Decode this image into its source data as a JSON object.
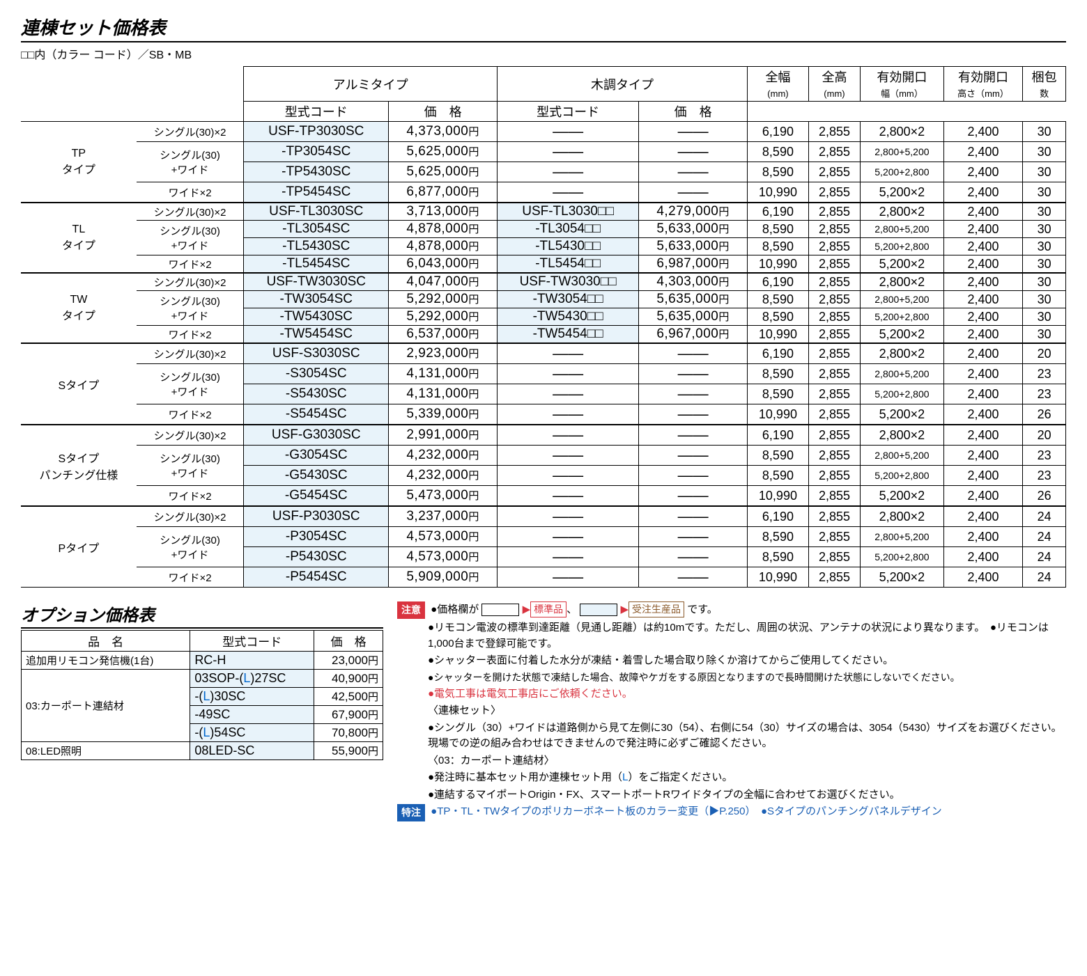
{
  "title": "連棟セット価格表",
  "subtitle": "□□内（カラー コード）／SB・MB",
  "headers": {
    "alumi": "アルミタイプ",
    "wood": "木調タイプ",
    "model": "型式コード",
    "price": "価　格",
    "width": "全幅",
    "height": "全高",
    "opw": "有効開口",
    "oph": "有効開口",
    "pack": "梱包",
    "mm": "(mm)",
    "wmm": "幅（mm）",
    "hmm": "高さ（mm）",
    "count": "数"
  },
  "groups": [
    {
      "type": "TP\nタイプ",
      "rows": [
        {
          "variant": "シングル(30)×2",
          "c1": "USF-TP3030SC",
          "p1": "4,373,000",
          "c2": "——",
          "p2": "——",
          "w": "6,190",
          "h": "2,855",
          "ow": "2,800×2",
          "oh": "2,400",
          "pk": "30"
        },
        {
          "variant": "シングル(30)\n+ワイド",
          "c1": "-TP3054SC",
          "p1": "5,625,000",
          "c2": "——",
          "p2": "——",
          "w": "8,590",
          "h": "2,855",
          "ow": "2,800+5,200",
          "oh": "2,400",
          "pk": "30",
          "ow_sm": true
        },
        {
          "variant": "",
          "c1": "-TP5430SC",
          "p1": "5,625,000",
          "c2": "——",
          "p2": "——",
          "w": "8,590",
          "h": "2,855",
          "ow": "5,200+2,800",
          "oh": "2,400",
          "pk": "30",
          "ow_sm": true
        },
        {
          "variant": "ワイド×2",
          "c1": "-TP5454SC",
          "p1": "6,877,000",
          "c2": "——",
          "p2": "——",
          "w": "10,990",
          "h": "2,855",
          "ow": "5,200×2",
          "oh": "2,400",
          "pk": "30"
        }
      ]
    },
    {
      "type": "TL\nタイプ",
      "rows": [
        {
          "variant": "シングル(30)×2",
          "c1": "USF-TL3030SC",
          "p1": "3,713,000",
          "c2": "USF-TL3030□□",
          "p2": "4,279,000",
          "w": "6,190",
          "h": "2,855",
          "ow": "2,800×2",
          "oh": "2,400",
          "pk": "30"
        },
        {
          "variant": "シングル(30)\n+ワイド",
          "c1": "-TL3054SC",
          "p1": "4,878,000",
          "c2": "-TL3054□□",
          "p2": "5,633,000",
          "w": "8,590",
          "h": "2,855",
          "ow": "2,800+5,200",
          "oh": "2,400",
          "pk": "30",
          "ow_sm": true
        },
        {
          "variant": "",
          "c1": "-TL5430SC",
          "p1": "4,878,000",
          "c2": "-TL5430□□",
          "p2": "5,633,000",
          "w": "8,590",
          "h": "2,855",
          "ow": "5,200+2,800",
          "oh": "2,400",
          "pk": "30",
          "ow_sm": true
        },
        {
          "variant": "ワイド×2",
          "c1": "-TL5454SC",
          "p1": "6,043,000",
          "c2": "-TL5454□□",
          "p2": "6,987,000",
          "w": "10,990",
          "h": "2,855",
          "ow": "5,200×2",
          "oh": "2,400",
          "pk": "30"
        }
      ]
    },
    {
      "type": "TW\nタイプ",
      "rows": [
        {
          "variant": "シングル(30)×2",
          "c1": "USF-TW3030SC",
          "p1": "4,047,000",
          "c2": "USF-TW3030□□",
          "p2": "4,303,000",
          "w": "6,190",
          "h": "2,855",
          "ow": "2,800×2",
          "oh": "2,400",
          "pk": "30"
        },
        {
          "variant": "シングル(30)\n+ワイド",
          "c1": "-TW3054SC",
          "p1": "5,292,000",
          "c2": "-TW3054□□",
          "p2": "5,635,000",
          "w": "8,590",
          "h": "2,855",
          "ow": "2,800+5,200",
          "oh": "2,400",
          "pk": "30",
          "ow_sm": true
        },
        {
          "variant": "",
          "c1": "-TW5430SC",
          "p1": "5,292,000",
          "c2": "-TW5430□□",
          "p2": "5,635,000",
          "w": "8,590",
          "h": "2,855",
          "ow": "5,200+2,800",
          "oh": "2,400",
          "pk": "30",
          "ow_sm": true
        },
        {
          "variant": "ワイド×2",
          "c1": "-TW5454SC",
          "p1": "6,537,000",
          "c2": "-TW5454□□",
          "p2": "6,967,000",
          "w": "10,990",
          "h": "2,855",
          "ow": "5,200×2",
          "oh": "2,400",
          "pk": "30"
        }
      ]
    },
    {
      "type": "Sタイプ",
      "rows": [
        {
          "variant": "シングル(30)×2",
          "c1": "USF-S3030SC",
          "p1": "2,923,000",
          "c2": "——",
          "p2": "——",
          "w": "6,190",
          "h": "2,855",
          "ow": "2,800×2",
          "oh": "2,400",
          "pk": "20"
        },
        {
          "variant": "シングル(30)\n+ワイド",
          "c1": "-S3054SC",
          "p1": "4,131,000",
          "c2": "——",
          "p2": "——",
          "w": "8,590",
          "h": "2,855",
          "ow": "2,800+5,200",
          "oh": "2,400",
          "pk": "23",
          "ow_sm": true
        },
        {
          "variant": "",
          "c1": "-S5430SC",
          "p1": "4,131,000",
          "c2": "——",
          "p2": "——",
          "w": "8,590",
          "h": "2,855",
          "ow": "5,200+2,800",
          "oh": "2,400",
          "pk": "23",
          "ow_sm": true
        },
        {
          "variant": "ワイド×2",
          "c1": "-S5454SC",
          "p1": "5,339,000",
          "c2": "——",
          "p2": "——",
          "w": "10,990",
          "h": "2,855",
          "ow": "5,200×2",
          "oh": "2,400",
          "pk": "26"
        }
      ]
    },
    {
      "type": "Sタイプ\nパンチング仕様",
      "rows": [
        {
          "variant": "シングル(30)×2",
          "c1": "USF-G3030SC",
          "p1": "2,991,000",
          "c2": "——",
          "p2": "——",
          "w": "6,190",
          "h": "2,855",
          "ow": "2,800×2",
          "oh": "2,400",
          "pk": "20"
        },
        {
          "variant": "シングル(30)\n+ワイド",
          "c1": "-G3054SC",
          "p1": "4,232,000",
          "c2": "——",
          "p2": "——",
          "w": "8,590",
          "h": "2,855",
          "ow": "2,800+5,200",
          "oh": "2,400",
          "pk": "23",
          "ow_sm": true
        },
        {
          "variant": "",
          "c1": "-G5430SC",
          "p1": "4,232,000",
          "c2": "——",
          "p2": "——",
          "w": "8,590",
          "h": "2,855",
          "ow": "5,200+2,800",
          "oh": "2,400",
          "pk": "23",
          "ow_sm": true
        },
        {
          "variant": "ワイド×2",
          "c1": "-G5454SC",
          "p1": "5,473,000",
          "c2": "——",
          "p2": "——",
          "w": "10,990",
          "h": "2,855",
          "ow": "5,200×2",
          "oh": "2,400",
          "pk": "26"
        }
      ]
    },
    {
      "type": "Pタイプ",
      "rows": [
        {
          "variant": "シングル(30)×2",
          "c1": "USF-P3030SC",
          "p1": "3,237,000",
          "c2": "——",
          "p2": "——",
          "w": "6,190",
          "h": "2,855",
          "ow": "2,800×2",
          "oh": "2,400",
          "pk": "24"
        },
        {
          "variant": "シングル(30)\n+ワイド",
          "c1": "-P3054SC",
          "p1": "4,573,000",
          "c2": "——",
          "p2": "——",
          "w": "8,590",
          "h": "2,855",
          "ow": "2,800+5,200",
          "oh": "2,400",
          "pk": "24",
          "ow_sm": true
        },
        {
          "variant": "",
          "c1": "-P5430SC",
          "p1": "4,573,000",
          "c2": "——",
          "p2": "——",
          "w": "8,590",
          "h": "2,855",
          "ow": "5,200+2,800",
          "oh": "2,400",
          "pk": "24",
          "ow_sm": true
        },
        {
          "variant": "ワイド×2",
          "c1": "-P5454SC",
          "p1": "5,909,000",
          "c2": "——",
          "p2": "——",
          "w": "10,990",
          "h": "2,855",
          "ow": "5,200×2",
          "oh": "2,400",
          "pk": "24"
        }
      ]
    }
  ],
  "opt_title": "オプション価格表",
  "opt_headers": {
    "name": "品　名",
    "code": "型式コード",
    "price": "価　格"
  },
  "opt_rows": [
    {
      "name": "追加用リモコン発信機(1台)",
      "code": "RC-H",
      "price": "23,000"
    },
    {
      "name": "03:カーポート連結材",
      "code": "03SOP-(<span class='L'>L</span>)27SC",
      "price": "40,900",
      "rowspan": 4
    },
    {
      "code": "-(<span class='L'>L</span>)30SC",
      "price": "42,500"
    },
    {
      "code": "-49SC",
      "price": "67,900"
    },
    {
      "code": "-(<span class='L'>L</span>)54SC",
      "price": "70,800"
    },
    {
      "name": "08:LED照明",
      "code": "08LED-SC",
      "price": "55,900"
    }
  ],
  "notes": {
    "badge_caution": "注意",
    "badge_special": "特注",
    "n1_a": "●価格欄が",
    "n1_b": "標準品",
    "n1_c": "受注生産品",
    "n1_d": "です。",
    "n2": "●リモコン電波の標準到達距離（見通し距離）は約10mです。ただし、周囲の状況、アンテナの状況により異なります。　●リモコンは1,000台まで登録可能です。",
    "n3": "●シャッター表面に付着した水分が凍結・着雪した場合取り除くか溶けてからご使用してください。",
    "n4": "●シャッターを開けた状態で凍結した場合、故障やケガをする原因となりますので長時間開けた状態にしないでください。",
    "n5": "●電気工事は電気工事店にご依頼ください。",
    "n6": "〈連棟セット〉",
    "n7": "●シングル（30）+ワイドは道路側から見て左側に30（54）、右側に54（30）サイズの場合は、3054（5430）サイズをお選びください。現場での逆の組み合わせはできませんので発注時に必ずご確認ください。",
    "n8": "〈03：カーポート連結材〉",
    "n9": "●発注時に基本セット用か連棟セット用（<span class='L'>L</span>）をご指定ください。",
    "n10": "●連結するマイポートOrigin・FX、スマートポートRワイドタイプの全幅に合わせてお選びください。",
    "n11": "●TP・TL・TWタイプのポリカーボネート板のカラー変更（▶P.250）　●Sタイプのパンチングパネルデザイン"
  }
}
